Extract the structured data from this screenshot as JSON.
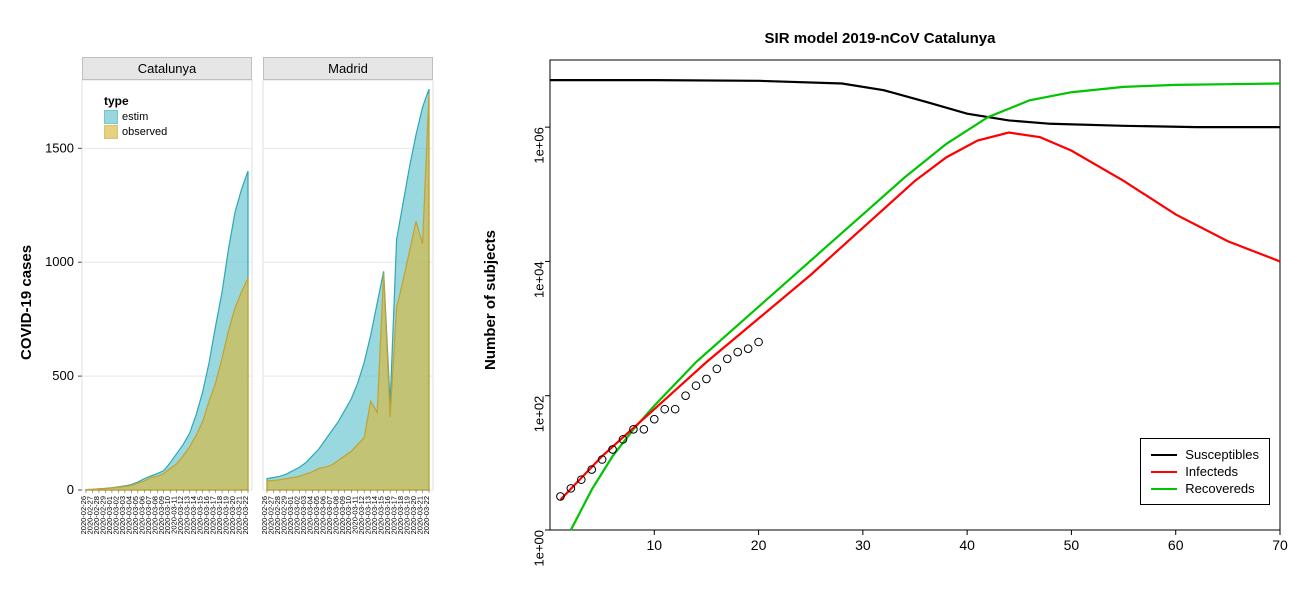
{
  "left": {
    "ylabel": "COVID-19 cases",
    "ylim": [
      0,
      1800
    ],
    "yticks": [
      0,
      500,
      1000,
      1500
    ],
    "facet_strip_bg": "#e6e6e6",
    "legend": {
      "title": "type",
      "items": [
        {
          "label": "estim",
          "fill": "#62c3cc",
          "fill_opacity": 0.65,
          "stroke": "#2ca8b5"
        },
        {
          "label": "observed",
          "fill": "#d9b93a",
          "fill_opacity": 0.65,
          "stroke": "#c4a22e"
        }
      ]
    },
    "x_labels": [
      "2020-02-26",
      "2020-02-27",
      "2020-02-28",
      "2020-02-29",
      "2020-03-01",
      "2020-03-02",
      "2020-03-03",
      "2020-03-04",
      "2020-03-05",
      "2020-03-06",
      "2020-03-07",
      "2020-03-08",
      "2020-03-09",
      "2020-03-10",
      "2020-03-11",
      "2020-03-12",
      "2020-03-13",
      "2020-03-14",
      "2020-03-15",
      "2020-03-16",
      "2020-03-17",
      "2020-03-18",
      "2020-03-19",
      "2020-03-20",
      "2020-03-21",
      "2020-03-22"
    ],
    "panels": [
      {
        "title": "Catalunya",
        "estim": [
          2,
          3,
          5,
          7,
          10,
          14,
          18,
          24,
          35,
          50,
          62,
          72,
          85,
          120,
          160,
          200,
          250,
          330,
          430,
          560,
          720,
          870,
          1060,
          1220,
          1320,
          1400
        ],
        "observed": [
          2,
          3,
          5,
          6,
          9,
          12,
          15,
          20,
          30,
          40,
          55,
          60,
          72,
          95,
          115,
          150,
          190,
          240,
          300,
          390,
          470,
          580,
          700,
          800,
          870,
          930
        ]
      },
      {
        "title": "Madrid",
        "estim": [
          50,
          55,
          60,
          70,
          85,
          100,
          120,
          150,
          180,
          220,
          260,
          300,
          350,
          400,
          470,
          560,
          680,
          820,
          960,
          380,
          1100,
          1260,
          1420,
          1560,
          1680,
          1760
        ],
        "observed": [
          40,
          42,
          45,
          50,
          55,
          60,
          70,
          80,
          95,
          100,
          110,
          130,
          150,
          170,
          200,
          230,
          390,
          340,
          950,
          320,
          800,
          920,
          1050,
          1180,
          1080,
          1740
        ]
      }
    ],
    "colors": {
      "estim_fill": "#62c3cc",
      "estim_stroke": "#2ca8b5",
      "observed_fill": "#d9b93a",
      "observed_stroke": "#c4a22e",
      "grid": "#ffffff",
      "panel_bg": "#ffffff",
      "axis": "#4d4d4d"
    }
  },
  "right": {
    "title": "SIR model 2019-nCoV  Catalunya",
    "ylabel": "Number of subjects",
    "xlim": [
      0,
      70
    ],
    "xticks": [
      10,
      20,
      30,
      40,
      50,
      60,
      70
    ],
    "ylog": true,
    "ylim_exp": [
      0,
      7
    ],
    "ytick_labels": [
      "1e+00",
      "1e+02",
      "1e+04",
      "1e+06"
    ],
    "ytick_exp": [
      0,
      2,
      4,
      6
    ],
    "colors": {
      "susceptible": "#000000",
      "infected": "#ff0000",
      "recovered": "#00c400",
      "points": "#000000",
      "axis": "#000000"
    },
    "line_width": 2.2,
    "legend": {
      "items": [
        {
          "label": "Susceptibles",
          "color": "#000000"
        },
        {
          "label": "Infecteds",
          "color": "#ff0000"
        },
        {
          "label": "Recovereds",
          "color": "#00c400"
        }
      ]
    },
    "points": [
      {
        "x": 1,
        "y": 0.5
      },
      {
        "x": 2,
        "y": 0.62
      },
      {
        "x": 3,
        "y": 0.75
      },
      {
        "x": 4,
        "y": 0.9
      },
      {
        "x": 5,
        "y": 1.05
      },
      {
        "x": 6,
        "y": 1.2
      },
      {
        "x": 7,
        "y": 1.35
      },
      {
        "x": 8,
        "y": 1.5
      },
      {
        "x": 9,
        "y": 1.5
      },
      {
        "x": 10,
        "y": 1.65
      },
      {
        "x": 11,
        "y": 1.8
      },
      {
        "x": 12,
        "y": 1.8
      },
      {
        "x": 13,
        "y": 2.0
      },
      {
        "x": 14,
        "y": 2.15
      },
      {
        "x": 15,
        "y": 2.25
      },
      {
        "x": 16,
        "y": 2.4
      },
      {
        "x": 17,
        "y": 2.55
      },
      {
        "x": 18,
        "y": 2.65
      },
      {
        "x": 19,
        "y": 2.7
      },
      {
        "x": 20,
        "y": 2.8
      }
    ],
    "susceptible_curve": [
      {
        "x": 0,
        "y": 6.7
      },
      {
        "x": 10,
        "y": 6.7
      },
      {
        "x": 20,
        "y": 6.69
      },
      {
        "x": 28,
        "y": 6.65
      },
      {
        "x": 32,
        "y": 6.55
      },
      {
        "x": 36,
        "y": 6.38
      },
      {
        "x": 40,
        "y": 6.2
      },
      {
        "x": 44,
        "y": 6.1
      },
      {
        "x": 48,
        "y": 6.05
      },
      {
        "x": 55,
        "y": 6.02
      },
      {
        "x": 62,
        "y": 6.0
      },
      {
        "x": 70,
        "y": 6.0
      }
    ],
    "infected_curve": [
      {
        "x": 1,
        "y": 0.45
      },
      {
        "x": 5,
        "y": 1.1
      },
      {
        "x": 10,
        "y": 1.8
      },
      {
        "x": 15,
        "y": 2.5
      },
      {
        "x": 20,
        "y": 3.15
      },
      {
        "x": 25,
        "y": 3.8
      },
      {
        "x": 30,
        "y": 4.5
      },
      {
        "x": 35,
        "y": 5.2
      },
      {
        "x": 38,
        "y": 5.55
      },
      {
        "x": 41,
        "y": 5.8
      },
      {
        "x": 44,
        "y": 5.92
      },
      {
        "x": 47,
        "y": 5.85
      },
      {
        "x": 50,
        "y": 5.65
      },
      {
        "x": 55,
        "y": 5.2
      },
      {
        "x": 60,
        "y": 4.7
      },
      {
        "x": 65,
        "y": 4.3
      },
      {
        "x": 70,
        "y": 4.0
      }
    ],
    "recovered_curve": [
      {
        "x": 2,
        "y": 0.0
      },
      {
        "x": 4,
        "y": 0.6
      },
      {
        "x": 6,
        "y": 1.1
      },
      {
        "x": 8,
        "y": 1.5
      },
      {
        "x": 10,
        "y": 1.85
      },
      {
        "x": 14,
        "y": 2.5
      },
      {
        "x": 18,
        "y": 3.05
      },
      {
        "x": 22,
        "y": 3.6
      },
      {
        "x": 26,
        "y": 4.15
      },
      {
        "x": 30,
        "y": 4.7
      },
      {
        "x": 34,
        "y": 5.25
      },
      {
        "x": 38,
        "y": 5.75
      },
      {
        "x": 42,
        "y": 6.15
      },
      {
        "x": 46,
        "y": 6.4
      },
      {
        "x": 50,
        "y": 6.52
      },
      {
        "x": 55,
        "y": 6.6
      },
      {
        "x": 60,
        "y": 6.63
      },
      {
        "x": 65,
        "y": 6.64
      },
      {
        "x": 70,
        "y": 6.65
      }
    ]
  }
}
